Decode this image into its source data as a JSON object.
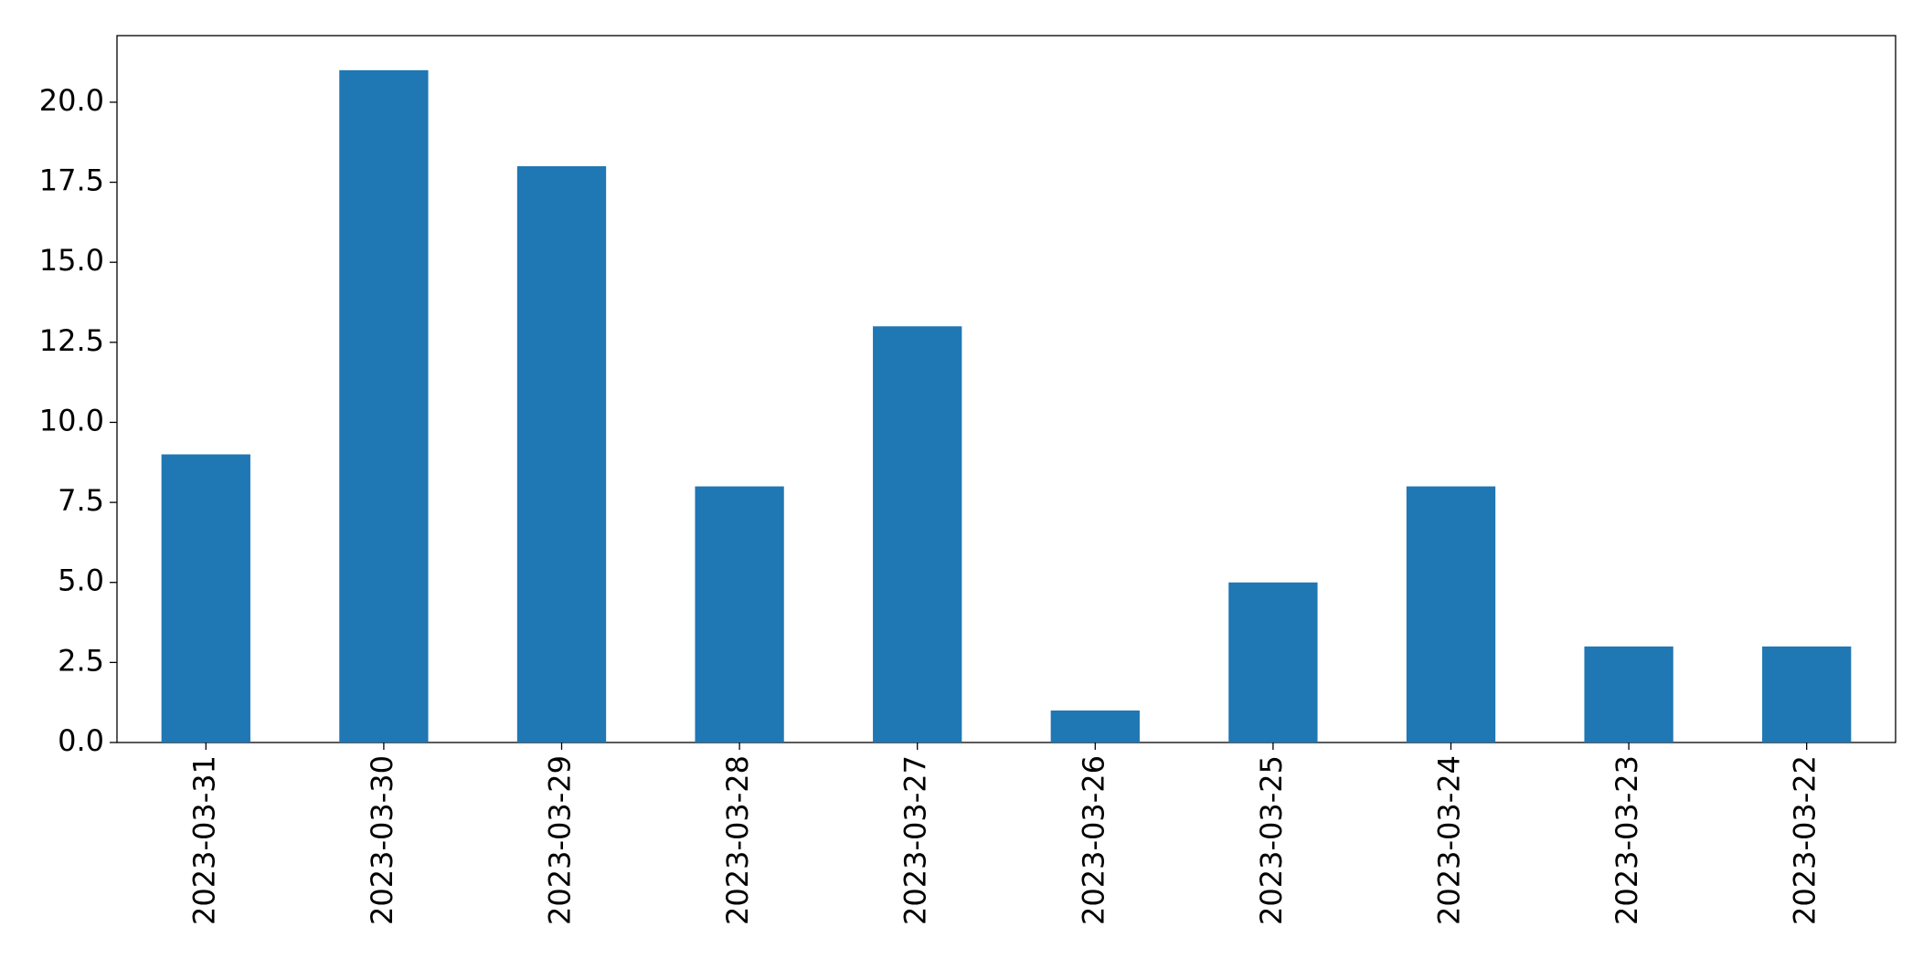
{
  "chart_data": {
    "type": "bar",
    "categories": [
      "2023-03-31",
      "2023-03-30",
      "2023-03-29",
      "2023-03-28",
      "2023-03-27",
      "2023-03-26",
      "2023-03-25",
      "2023-03-24",
      "2023-03-23",
      "2023-03-22"
    ],
    "values": [
      9,
      21,
      18,
      8,
      13,
      1,
      5,
      8,
      3,
      3
    ],
    "color": "#1f77b4",
    "ylim": [
      0,
      22.08
    ],
    "yticks": [
      {
        "value": 0,
        "label": "0.0"
      },
      {
        "value": 2.5,
        "label": "2.5"
      },
      {
        "value": 5,
        "label": "5.0"
      },
      {
        "value": 7.5,
        "label": "7.5"
      },
      {
        "value": 10,
        "label": "10.0"
      },
      {
        "value": 12.5,
        "label": "12.5"
      },
      {
        "value": 15,
        "label": "15.0"
      },
      {
        "value": 17.5,
        "label": "17.5"
      },
      {
        "value": 20,
        "label": "20.0"
      }
    ],
    "grid": false
  }
}
